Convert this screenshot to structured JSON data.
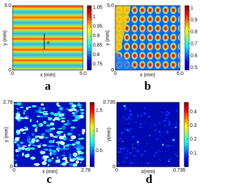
{
  "chart_data": [
    {
      "type": "heatmap",
      "panel_label": "a",
      "annotation": "a",
      "xlabel": "x (mm)",
      "ylabel": "y (mm)",
      "xlim": [
        0,
        5
      ],
      "ylim": [
        0,
        5
      ],
      "xticks": [
        0,
        {
          "value": 5,
          "label": "5.0"
        }
      ],
      "yticks": [
        0,
        {
          "value": 5,
          "label": "5.0"
        }
      ],
      "clim": [
        0.72,
        1.06
      ],
      "cticks": [
        0.75,
        0.8,
        0.85,
        0.9,
        0.95,
        1,
        1.05
      ]
    },
    {
      "type": "heatmap",
      "panel_label": "b",
      "xlabel": "x (mm)",
      "ylabel": "y (mm)",
      "xlim": [
        0,
        5
      ],
      "ylim": [
        0,
        5
      ],
      "xticks": [
        0,
        {
          "value": 5,
          "label": "5.0"
        }
      ],
      "yticks": [
        0,
        {
          "value": 5,
          "label": "5.0"
        }
      ],
      "clim": [
        0.48,
        1.02
      ],
      "cticks": [
        0.5,
        0.6,
        0.7,
        0.8,
        0.9,
        1
      ]
    },
    {
      "type": "heatmap",
      "panel_label": "c",
      "xlabel": "x (mm)",
      "ylabel": "y (mm)",
      "xlim": [
        0,
        2.78
      ],
      "ylim": [
        0,
        2.78
      ],
      "xticks": [
        0,
        2.78
      ],
      "yticks": [
        0,
        2.78
      ],
      "clim": [
        0.1,
        1.7
      ],
      "cticks": [
        0.5,
        1,
        1.5
      ]
    },
    {
      "type": "heatmap",
      "panel_label": "d",
      "xlabel": "x(mm)",
      "ylabel": "y(mm)",
      "xlim": [
        0,
        0.735
      ],
      "ylim": [
        0,
        0.735
      ],
      "xticks": [
        0,
        0.735
      ],
      "yticks": [
        0,
        0.735
      ],
      "clim": [
        0,
        0.47
      ],
      "cticks": [
        0.1,
        0.2,
        0.3,
        0.4
      ]
    }
  ]
}
